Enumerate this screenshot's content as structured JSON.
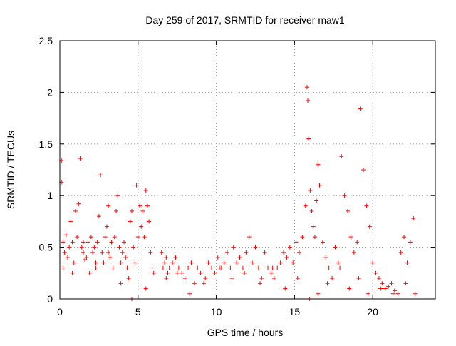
{
  "chart_data": {
    "type": "scatter",
    "title": "Day 259 of 2017, SRMTID for receiver maw1",
    "xlabel": "GPS time / hours",
    "ylabel": "SRMTID / TECUs",
    "xlim": [
      0,
      24
    ],
    "ylim": [
      0,
      2.5
    ],
    "x_ticks": [
      "0",
      "5",
      "10",
      "15",
      "20"
    ],
    "y_ticks": [
      "0",
      "0.5",
      "1",
      "1.5",
      "2",
      "2.5"
    ],
    "grid": true,
    "marker": "+",
    "color": "#ff0000",
    "series": [
      {
        "x": [
          0.1,
          0.1,
          0.2,
          0.3,
          0.4,
          0.5,
          0.6,
          0.7,
          0.8,
          0.9,
          1.0,
          1.1,
          1.2,
          1.3,
          1.4,
          1.5,
          1.6,
          1.7,
          1.8,
          1.9,
          2.0,
          2.1,
          2.2,
          2.3,
          2.4,
          2.5,
          2.6,
          2.7,
          2.8,
          2.9,
          3.0,
          3.1,
          3.2,
          3.3,
          3.4,
          3.5,
          3.6,
          3.7,
          3.8,
          3.9,
          4.0,
          4.1,
          4.2,
          4.3,
          4.4,
          4.5,
          4.6,
          4.7,
          4.8,
          4.9,
          5.0,
          5.1,
          5.2,
          5.3,
          5.4,
          5.5,
          5.6,
          5.7,
          5.8,
          5.9,
          6.0,
          6.5,
          6.6,
          6.7,
          6.8,
          6.9,
          7.0,
          7.2,
          7.4,
          7.6,
          7.8,
          8.0,
          8.2,
          8.4,
          8.6,
          8.8,
          9.0,
          9.3,
          9.5,
          9.7,
          9.9,
          10.1,
          10.3,
          10.5,
          10.7,
          10.9,
          11.1,
          11.3,
          11.5,
          11.7,
          11.9,
          12.1,
          12.3,
          12.5,
          12.7,
          12.9,
          13.1,
          13.3,
          13.5,
          13.7,
          13.9,
          14.1,
          14.3,
          14.5,
          14.7,
          14.9,
          15.1,
          15.3,
          15.5,
          15.7,
          15.8,
          15.85,
          15.9,
          16.0,
          16.1,
          16.2,
          16.3,
          16.4,
          16.5,
          16.6,
          16.8,
          17.0,
          17.2,
          17.4,
          17.6,
          17.8,
          18.0,
          18.2,
          18.4,
          18.6,
          18.8,
          19.0,
          19.2,
          19.4,
          19.6,
          19.8,
          20.0,
          20.2,
          20.4,
          20.6,
          20.8,
          21.0,
          21.2,
          21.4,
          21.6,
          21.8,
          22.0,
          22.2,
          22.4,
          22.6,
          0.2,
          0.8,
          1.5,
          2.3,
          3.1,
          3.9,
          4.6,
          5.5,
          6.8,
          7.5,
          8.3,
          9.2,
          10.2,
          11.0,
          11.8,
          12.8,
          13.6,
          14.4,
          15.2,
          15.95,
          16.5,
          17.1,
          17.9,
          18.5,
          19.1,
          19.7,
          20.5,
          21.3,
          22.1,
          22.7
        ],
        "y": [
          1.34,
          1.13,
          0.55,
          0.45,
          0.62,
          0.4,
          0.5,
          0.75,
          0.55,
          0.35,
          0.85,
          0.6,
          0.92,
          1.36,
          0.5,
          0.45,
          0.38,
          0.4,
          0.55,
          0.25,
          0.6,
          0.45,
          0.5,
          0.3,
          0.55,
          0.8,
          1.2,
          0.45,
          0.35,
          0.6,
          0.7,
          0.9,
          0.4,
          0.55,
          0.3,
          0.6,
          0.85,
          1.0,
          0.5,
          0.35,
          0.45,
          0.55,
          0.4,
          0.3,
          0.2,
          0.75,
          0.85,
          0.5,
          0.35,
          1.1,
          0.6,
          0.9,
          0.7,
          0.85,
          0.6,
          1.05,
          0.9,
          0.75,
          0.45,
          0.3,
          0.25,
          0.45,
          0.3,
          0.35,
          0.4,
          0.25,
          0.3,
          0.35,
          0.4,
          0.3,
          0.25,
          0.2,
          0.3,
          0.35,
          0.15,
          0.3,
          0.25,
          0.2,
          0.35,
          0.3,
          0.25,
          0.4,
          0.3,
          0.35,
          0.45,
          0.3,
          0.5,
          0.35,
          0.4,
          0.3,
          0.45,
          0.6,
          0.35,
          0.5,
          0.3,
          0.2,
          0.45,
          0.3,
          0.25,
          0.2,
          0.3,
          0.35,
          0.45,
          0.4,
          0.5,
          0.35,
          0.55,
          0.45,
          0.6,
          0.9,
          2.05,
          1.92,
          1.55,
          1.05,
          0.85,
          0.7,
          0.6,
          0.95,
          1.3,
          1.1,
          0.55,
          0.4,
          0.3,
          0.2,
          0.5,
          0.35,
          1.38,
          1.0,
          0.85,
          0.6,
          0.45,
          0.55,
          1.84,
          1.25,
          0.9,
          0.7,
          0.35,
          0.25,
          0.2,
          0.15,
          0.1,
          0.12,
          0.15,
          0.08,
          0.05,
          0.45,
          0.6,
          0.35,
          0.55,
          0.78,
          0.3,
          0.25,
          0.55,
          0.35,
          0.45,
          0.15,
          0.0,
          0.1,
          0.2,
          0.25,
          0.05,
          0.15,
          0.3,
          0.2,
          0.25,
          0.15,
          0.3,
          0.1,
          0.2,
          0.0,
          0.05,
          0.15,
          0.3,
          0.1,
          0.2,
          0.05,
          0.1,
          0.05,
          0.15,
          0.05
        ]
      }
    ]
  }
}
